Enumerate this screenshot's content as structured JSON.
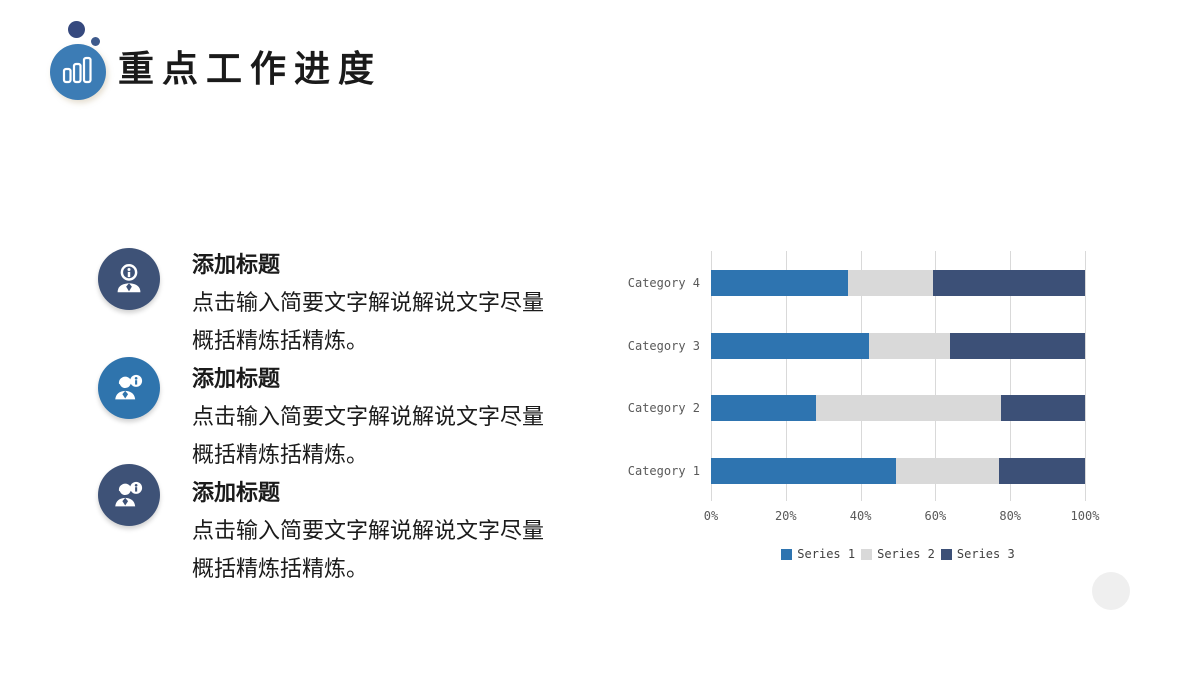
{
  "header": {
    "title": "重点工作进度",
    "icon": {
      "circle_color": "#3C7CB5",
      "dot1_color": "#36497E",
      "dot2_color": "#3E5A8C"
    }
  },
  "items": [
    {
      "icon": "person-info-icon",
      "circle_color": "#3E5277",
      "title": "添加标题",
      "desc": [
        "点击输入简要文字解说解说文字尽量",
        "概括精炼括精炼。"
      ]
    },
    {
      "icon": "person-info-badge-icon",
      "circle_color": "#2F74AD",
      "title": "添加标题",
      "desc": [
        "点击输入简要文字解说解说文字尽量",
        "概括精炼括精炼。"
      ]
    },
    {
      "icon": "person-info-badge-icon",
      "circle_color": "#3E5277",
      "title": "添加标题",
      "desc": [
        "点击输入简要文字解说解说文字尽量",
        "概括精炼括精炼。"
      ]
    }
  ],
  "chart_data": {
    "type": "bar",
    "variant": "100-percent-stacked-horizontal",
    "categories_top_to_bottom": [
      "Category 4",
      "Category 3",
      "Category 2",
      "Category 1"
    ],
    "series": [
      {
        "name": "Series 1",
        "color": "#2E74B0",
        "values_pct": [
          36.6,
          42.2,
          28.1,
          49.4
        ]
      },
      {
        "name": "Series 2",
        "color": "#D9D9D9",
        "values_pct": [
          22.8,
          21.7,
          49.4,
          27.6
        ]
      },
      {
        "name": "Series 3",
        "color": "#3C5077",
        "values_pct": [
          40.6,
          36.1,
          22.5,
          23.0
        ]
      }
    ],
    "x_ticks": [
      "0%",
      "20%",
      "40%",
      "60%",
      "80%",
      "100%"
    ],
    "xlim": [
      0,
      100
    ],
    "grid": true,
    "legend_position": "bottom"
  },
  "decor": {
    "corner_circle_color": "#EFEFEF"
  }
}
